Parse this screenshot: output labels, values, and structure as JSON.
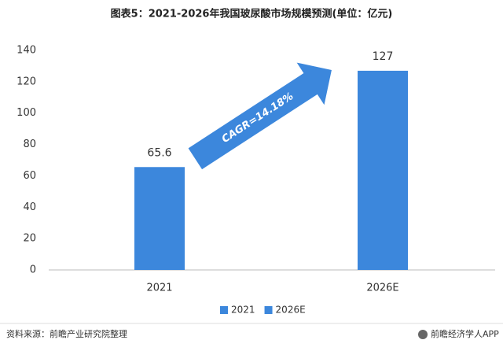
{
  "chart_data": {
    "type": "bar",
    "title": "图表5：2021-2026年我国玻尿酸市场规模预测(单位：亿元)",
    "categories": [
      "2021",
      "2026E"
    ],
    "series": [
      {
        "name": "2021",
        "color": "#3c87dc",
        "values": [
          65.6,
          null
        ]
      },
      {
        "name": "2026E",
        "color": "#3c87dc",
        "values": [
          null,
          127
        ]
      }
    ],
    "ylim": [
      0,
      140
    ],
    "yticks": [
      0,
      20,
      40,
      60,
      80,
      100,
      120,
      140
    ],
    "grid": false,
    "legend": "bottom",
    "annotation": "CAGR=14.18%",
    "source": "资料来源：前瞻产业研究院整理",
    "brand": "前瞻经济学人APP"
  }
}
